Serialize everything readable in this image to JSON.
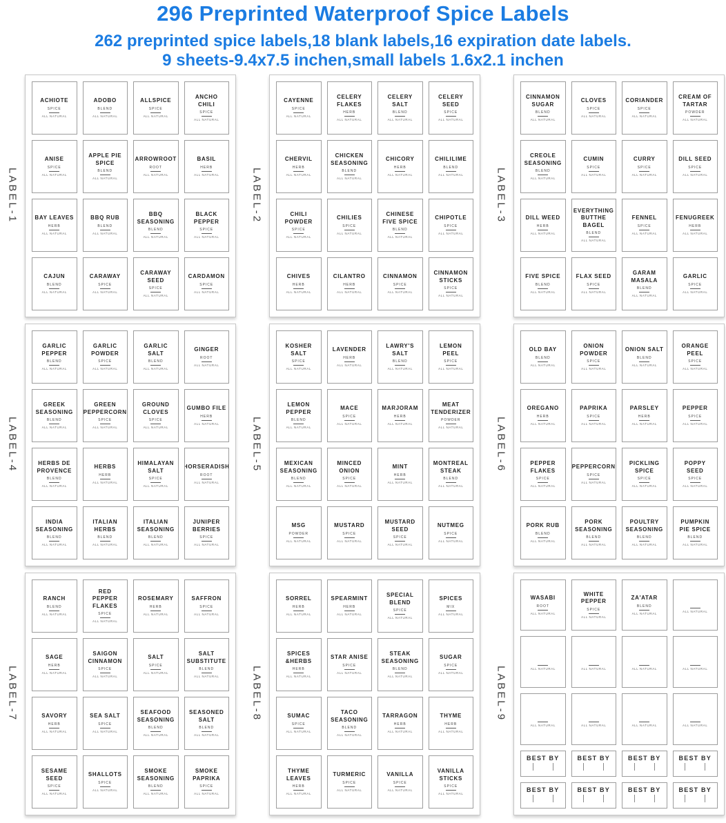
{
  "header": {
    "title": "296 Preprinted Waterproof Spice Labels",
    "subtitle_line1": "262 preprinted spice labels,18 blank labels,16 expiration date labels.",
    "subtitle_line2": "9 sheets-9.4x7.5 inchen,small labels 1.6x2.1 inchen",
    "accent_color": "#1b7ce2"
  },
  "common": {
    "all_natural": "ALL NATURAL",
    "best_by": "BEST BY"
  },
  "sheets": [
    {
      "side_label": "LABEL-1",
      "cells": [
        {
          "kind": "label",
          "name": "ACHIOTE",
          "type": "SPICE"
        },
        {
          "kind": "label",
          "name": "ADOBO",
          "type": "BLEND"
        },
        {
          "kind": "label",
          "name": "ALLSPICE",
          "type": "SPICE"
        },
        {
          "kind": "label",
          "name": "ANCHO CHILI",
          "type": "SPICE"
        },
        {
          "kind": "label",
          "name": "ANISE",
          "type": "SPICE"
        },
        {
          "kind": "label",
          "name": "APPLE PIE SPICE",
          "type": "BLEND"
        },
        {
          "kind": "label",
          "name": "ARROWROOT",
          "type": "ROOT"
        },
        {
          "kind": "label",
          "name": "BASIL",
          "type": "HERB"
        },
        {
          "kind": "label",
          "name": "BAY LEAVES",
          "type": "HERB"
        },
        {
          "kind": "label",
          "name": "BBQ RUB",
          "type": "BLEND"
        },
        {
          "kind": "label",
          "name": "BBQ SEASONING",
          "type": "BLEND"
        },
        {
          "kind": "label",
          "name": "BLACK PEPPER",
          "type": "SPICE"
        },
        {
          "kind": "label",
          "name": "CAJUN",
          "type": "BLEND"
        },
        {
          "kind": "label",
          "name": "CARAWAY",
          "type": "SPICE"
        },
        {
          "kind": "label",
          "name": "CARAWAY SEED",
          "type": "SPICE"
        },
        {
          "kind": "label",
          "name": "CARDAMON",
          "type": "SPICE"
        }
      ]
    },
    {
      "side_label": "LABEL-2",
      "cells": [
        {
          "kind": "label",
          "name": "CAYENNE",
          "type": "SPICE"
        },
        {
          "kind": "label",
          "name": "CELERY FLAKES",
          "type": "HERB"
        },
        {
          "kind": "label",
          "name": "CELERY SALT",
          "type": "BLEND"
        },
        {
          "kind": "label",
          "name": "CELERY SEED",
          "type": "SPICE"
        },
        {
          "kind": "label",
          "name": "CHERVIL",
          "type": "HERB"
        },
        {
          "kind": "label",
          "name": "CHICKEN SEASONING",
          "type": "BLEND"
        },
        {
          "kind": "label",
          "name": "CHICORY",
          "type": "HERB"
        },
        {
          "kind": "label",
          "name": "CHILILIME",
          "type": "BLEND"
        },
        {
          "kind": "label",
          "name": "CHILI POWDER",
          "type": "SPICE"
        },
        {
          "kind": "label",
          "name": "CHILIES",
          "type": "SPICE"
        },
        {
          "kind": "label",
          "name": "CHINESE FIVE SPICE",
          "type": "BLEND"
        },
        {
          "kind": "label",
          "name": "CHIPOTLE",
          "type": "SPICE"
        },
        {
          "kind": "label",
          "name": "CHIVES",
          "type": "HERB"
        },
        {
          "kind": "label",
          "name": "CILANTRO",
          "type": "HERB"
        },
        {
          "kind": "label",
          "name": "CINNAMON",
          "type": "SPICE"
        },
        {
          "kind": "label",
          "name": "CINNAMON STICKS",
          "type": "SPICE"
        }
      ]
    },
    {
      "side_label": "LABEL-3",
      "cells": [
        {
          "kind": "label",
          "name": "CINNAMON SUGAR",
          "type": "BLEND"
        },
        {
          "kind": "label",
          "name": "CLOVES",
          "type": "SPICE"
        },
        {
          "kind": "label",
          "name": "CORIANDER",
          "type": "SPICE"
        },
        {
          "kind": "label",
          "name": "CREAM OF TARTAR",
          "type": "POWDER"
        },
        {
          "kind": "label",
          "name": "CREOLE SEASONING",
          "type": "BLEND"
        },
        {
          "kind": "label",
          "name": "CUMIN",
          "type": "SPICE"
        },
        {
          "kind": "label",
          "name": "CURRY",
          "type": "SPICE"
        },
        {
          "kind": "label",
          "name": "DILL SEED",
          "type": "SPICE"
        },
        {
          "kind": "label",
          "name": "DILL WEED",
          "type": "HERB"
        },
        {
          "kind": "label",
          "name": "EVERYTHING BUTTHE BAGEL",
          "type": "BLEND"
        },
        {
          "kind": "label",
          "name": "FENNEL",
          "type": "SPICE"
        },
        {
          "kind": "label",
          "name": "FENUGREEK",
          "type": "HERB"
        },
        {
          "kind": "label",
          "name": "FIVE SPICE",
          "type": "BLEND"
        },
        {
          "kind": "label",
          "name": "FLAX SEED",
          "type": "SPICE"
        },
        {
          "kind": "label",
          "name": "GARAM MASALA",
          "type": "BLEND"
        },
        {
          "kind": "label",
          "name": "GARLIC",
          "type": "SPICE"
        }
      ]
    },
    {
      "side_label": "LABEL-4",
      "cells": [
        {
          "kind": "label",
          "name": "GARLIC PEPPER",
          "type": "BLEND"
        },
        {
          "kind": "label",
          "name": "GARLIC POWDER",
          "type": "SPICE"
        },
        {
          "kind": "label",
          "name": "GARLIC SALT",
          "type": "BLEND"
        },
        {
          "kind": "label",
          "name": "GINGER",
          "type": "ROOT"
        },
        {
          "kind": "label",
          "name": "GREEK SEASONING",
          "type": "BLEND"
        },
        {
          "kind": "label",
          "name": "GREEN PEPPERCORN",
          "type": "SPICE"
        },
        {
          "kind": "label",
          "name": "GROUND CLOVES",
          "type": "SPICE"
        },
        {
          "kind": "label",
          "name": "GUMBO FILE",
          "type": "HERB"
        },
        {
          "kind": "label",
          "name": "HERBS DE PROVENCE",
          "type": "BLEND"
        },
        {
          "kind": "label",
          "name": "HERBS",
          "type": "HERB"
        },
        {
          "kind": "label",
          "name": "HIMALAYAN SALT",
          "type": "SPICE"
        },
        {
          "kind": "label",
          "name": "HORSERADISH",
          "type": "ROOT"
        },
        {
          "kind": "label",
          "name": "INDIA SEASONING",
          "type": "BLEND"
        },
        {
          "kind": "label",
          "name": "ITALIAN HERBS",
          "type": "BLEND"
        },
        {
          "kind": "label",
          "name": "ITALIAN SEASONING",
          "type": "BLEND"
        },
        {
          "kind": "label",
          "name": "JUNIPER BERRIES",
          "type": "SPICE"
        }
      ]
    },
    {
      "side_label": "LABEL-5",
      "cells": [
        {
          "kind": "label",
          "name": "KOSHER SALT",
          "type": "SPICE"
        },
        {
          "kind": "label",
          "name": "LAVENDER",
          "type": "HERB"
        },
        {
          "kind": "label",
          "name": "LAWRY'S SALT",
          "type": "BLEND"
        },
        {
          "kind": "label",
          "name": "LEMON PEEL",
          "type": "SPICE"
        },
        {
          "kind": "label",
          "name": "LEMON PEPPER",
          "type": "BLEND"
        },
        {
          "kind": "label",
          "name": "MACE",
          "type": "SPICE"
        },
        {
          "kind": "label",
          "name": "MARJORAM",
          "type": "HERB"
        },
        {
          "kind": "label",
          "name": "MEAT TENDERIZER",
          "type": "POWDER"
        },
        {
          "kind": "label",
          "name": "MEXICAN SEASONING",
          "type": "BLEND"
        },
        {
          "kind": "label",
          "name": "MINCED ONION",
          "type": "SPICE"
        },
        {
          "kind": "label",
          "name": "MINT",
          "type": "HERB"
        },
        {
          "kind": "label",
          "name": "MONTREAL STEAK",
          "type": "BLEND"
        },
        {
          "kind": "label",
          "name": "MSG",
          "type": "POWDER"
        },
        {
          "kind": "label",
          "name": "MUSTARD",
          "type": "SPICE"
        },
        {
          "kind": "label",
          "name": "MUSTARD SEED",
          "type": "SPICE"
        },
        {
          "kind": "label",
          "name": "NUTMEG",
          "type": "SPICE"
        }
      ]
    },
    {
      "side_label": "LABEL-6",
      "cells": [
        {
          "kind": "label",
          "name": "OLD BAY",
          "type": "BLEND"
        },
        {
          "kind": "label",
          "name": "ONION POWDER",
          "type": "SPICE"
        },
        {
          "kind": "label",
          "name": "ONION SALT",
          "type": "BLEND"
        },
        {
          "kind": "label",
          "name": "ORANGE PEEL",
          "type": "SPICE"
        },
        {
          "kind": "label",
          "name": "OREGANO",
          "type": "HERB"
        },
        {
          "kind": "label",
          "name": "PAPRIKA",
          "type": "SPICE"
        },
        {
          "kind": "label",
          "name": "PARSLEY",
          "type": "HERB"
        },
        {
          "kind": "label",
          "name": "PEPPER",
          "type": "SPICE"
        },
        {
          "kind": "label",
          "name": "PEPPER FLAKES",
          "type": "SPICE"
        },
        {
          "kind": "label",
          "name": "PEPPERCORN",
          "type": "SPICE"
        },
        {
          "kind": "label",
          "name": "PICKLING SPICE",
          "type": "SPICE"
        },
        {
          "kind": "label",
          "name": "POPPY SEED",
          "type": "SPICE"
        },
        {
          "kind": "label",
          "name": "PORK RUB",
          "type": "BLEND"
        },
        {
          "kind": "label",
          "name": "PORK SEASONING",
          "type": "BLEND"
        },
        {
          "kind": "label",
          "name": "POULTRY SEASONING",
          "type": "BLEND"
        },
        {
          "kind": "label",
          "name": "PUMPKIN PIE SPICE",
          "type": "BLEND"
        }
      ]
    },
    {
      "side_label": "LABEL-7",
      "cells": [
        {
          "kind": "label",
          "name": "RANCH",
          "type": "BLEND"
        },
        {
          "kind": "label",
          "name": "RED PEPPER FLAKES",
          "type": "SPICE"
        },
        {
          "kind": "label",
          "name": "ROSEMARY",
          "type": "HERB"
        },
        {
          "kind": "label",
          "name": "SAFFRON",
          "type": "SPICE"
        },
        {
          "kind": "label",
          "name": "SAGE",
          "type": "HERB"
        },
        {
          "kind": "label",
          "name": "SAIGON CINNAMON",
          "type": "SPICE"
        },
        {
          "kind": "label",
          "name": "SALT",
          "type": "SPICE"
        },
        {
          "kind": "label",
          "name": "SALT SUBSTITUTE",
          "type": "BLEND"
        },
        {
          "kind": "label",
          "name": "SAVORY",
          "type": "HERB"
        },
        {
          "kind": "label",
          "name": "SEA SALT",
          "type": "SPICE"
        },
        {
          "kind": "label",
          "name": "SEAFOOD SEASONING",
          "type": "BLEND"
        },
        {
          "kind": "label",
          "name": "SEASONED SALT",
          "type": "BLEND"
        },
        {
          "kind": "label",
          "name": "SESAME SEED",
          "type": "SPICE"
        },
        {
          "kind": "label",
          "name": "SHALLOTS",
          "type": "SPICE"
        },
        {
          "kind": "label",
          "name": "SMOKE SEASONING",
          "type": "BLEND"
        },
        {
          "kind": "label",
          "name": "SMOKE PAPRIKA",
          "type": "SPICE"
        }
      ]
    },
    {
      "side_label": "LABEL-8",
      "cells": [
        {
          "kind": "label",
          "name": "SORREL",
          "type": "HERB"
        },
        {
          "kind": "label",
          "name": "SPEARMINT",
          "type": "HERB"
        },
        {
          "kind": "label",
          "name": "SPECIAL BLEND",
          "type": "SPICE"
        },
        {
          "kind": "label",
          "name": "SPICES",
          "type": "MIX"
        },
        {
          "kind": "label",
          "name": "SPICES &HERBS",
          "type": "HERB"
        },
        {
          "kind": "label",
          "name": "STAR ANISE",
          "type": "SPICE"
        },
        {
          "kind": "label",
          "name": "STEAK SEASONING",
          "type": "BLEND"
        },
        {
          "kind": "label",
          "name": "SUGAR",
          "type": "SPICE"
        },
        {
          "kind": "label",
          "name": "SUMAC",
          "type": "SPICE"
        },
        {
          "kind": "label",
          "name": "TACO SEASONING",
          "type": "BLEND"
        },
        {
          "kind": "label",
          "name": "TARRAGON",
          "type": "HERB"
        },
        {
          "kind": "label",
          "name": "THYME",
          "type": "HERB"
        },
        {
          "kind": "label",
          "name": "THYME LEAVES",
          "type": "HERB"
        },
        {
          "kind": "label",
          "name": "TURMERIC",
          "type": "SPICE"
        },
        {
          "kind": "label",
          "name": "VANILLA",
          "type": "SPICE"
        },
        {
          "kind": "label",
          "name": "VANILLA STICKS",
          "type": "SPICE"
        }
      ]
    },
    {
      "side_label": "LABEL-9",
      "cells": [
        {
          "kind": "label",
          "name": "WASABI",
          "type": "ROOT"
        },
        {
          "kind": "label",
          "name": "WHITE PEPPER",
          "type": "SPICE"
        },
        {
          "kind": "label",
          "name": "ZA'ATAR",
          "type": "BLEND"
        },
        {
          "kind": "blank"
        },
        {
          "kind": "blank"
        },
        {
          "kind": "blank"
        },
        {
          "kind": "blank"
        },
        {
          "kind": "blank"
        },
        {
          "kind": "blank"
        },
        {
          "kind": "blank"
        },
        {
          "kind": "blank"
        },
        {
          "kind": "blank"
        },
        {
          "kind": "bestby"
        },
        {
          "kind": "bestby"
        },
        {
          "kind": "bestby"
        },
        {
          "kind": "bestby"
        },
        {
          "kind": "bestby"
        },
        {
          "kind": "bestby"
        },
        {
          "kind": "bestby"
        },
        {
          "kind": "bestby"
        }
      ]
    }
  ]
}
